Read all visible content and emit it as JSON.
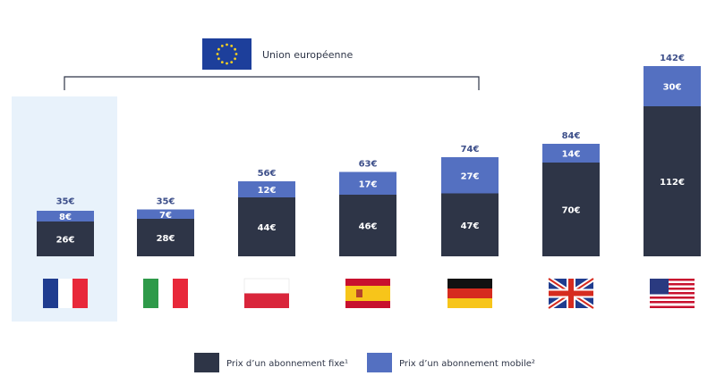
{
  "chart_data": {
    "type": "stacked-bar",
    "annotation": "Union européenne",
    "categories": [
      null,
      null,
      null,
      null,
      null,
      null,
      null
    ],
    "series": [
      {
        "name": "Prix d’un abonnement fixe¹",
        "color": "#2e3547",
        "values": [
          26,
          28,
          44,
          46,
          47,
          70,
          112
        ],
        "value_labels": [
          "26€",
          "28€",
          "44€",
          "46€",
          "47€",
          "70€",
          "112€"
        ]
      },
      {
        "name": "Prix d’un abonnement mobile²",
        "color": "#5470c1",
        "values": [
          8,
          7,
          12,
          17,
          27,
          14,
          30
        ],
        "value_labels": [
          "8€",
          "7€",
          "12€",
          "17€",
          "27€",
          "14€",
          "30€"
        ]
      }
    ],
    "totals": [
      35,
      35,
      56,
      63,
      74,
      84,
      142
    ],
    "total_labels": [
      "35€",
      "35€",
      "56€",
      "63€",
      "74€",
      "84€",
      "142€"
    ]
  }
}
